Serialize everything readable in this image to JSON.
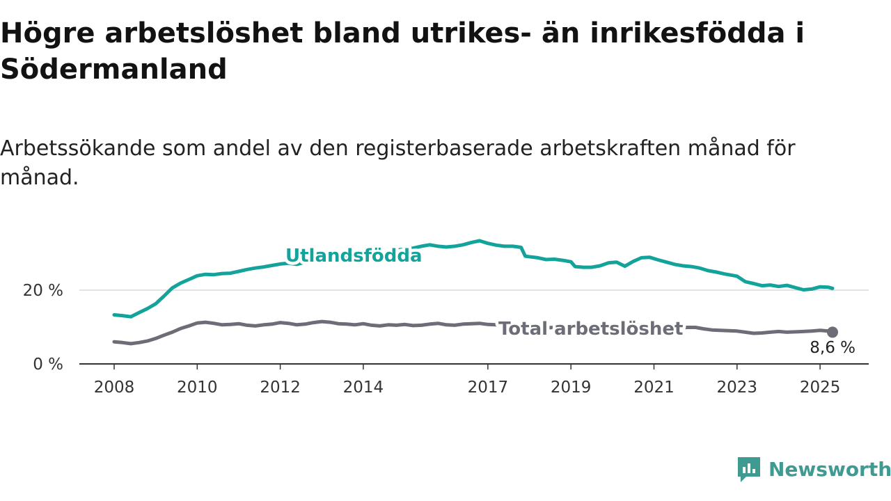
{
  "header": {
    "title": "Högre arbetslöshet bland utrikes- än inrikesfödda i Södermanland",
    "subtitle": "Arbetssökande som andel av den registerbaserade arbetskraften månad för månad."
  },
  "brand": {
    "name": "Newsworthy",
    "icon": "newsworthy-logo-icon",
    "color": "#3f9a91"
  },
  "chart_data": {
    "type": "line",
    "xlim": [
      2008.0,
      2025.5
    ],
    "ylim": [
      0,
      33
    ],
    "grid": true,
    "y_ticks": [
      {
        "value": 0,
        "label": "0 %"
      },
      {
        "value": 20,
        "label": "20 %"
      }
    ],
    "x_ticks": [
      {
        "value": 2008,
        "label": "2008"
      },
      {
        "value": 2010,
        "label": "2010"
      },
      {
        "value": 2012,
        "label": "2012"
      },
      {
        "value": 2014,
        "label": "2014"
      },
      {
        "value": 2017,
        "label": "2017"
      },
      {
        "value": 2019,
        "label": "2019"
      },
      {
        "value": 2021,
        "label": "2021"
      },
      {
        "value": 2023,
        "label": "2023"
      },
      {
        "value": 2025,
        "label": "2025"
      }
    ],
    "series": [
      {
        "name": "Utlandsfödda",
        "color": "#13a39b",
        "points": [
          [
            2008.0,
            13.3
          ],
          [
            2008.2,
            13.1
          ],
          [
            2008.4,
            12.8
          ],
          [
            2008.6,
            13.9
          ],
          [
            2008.8,
            15.0
          ],
          [
            2009.0,
            16.3
          ],
          [
            2009.2,
            18.4
          ],
          [
            2009.4,
            20.6
          ],
          [
            2009.6,
            21.9
          ],
          [
            2009.8,
            22.9
          ],
          [
            2010.0,
            23.9
          ],
          [
            2010.2,
            24.3
          ],
          [
            2010.4,
            24.2
          ],
          [
            2010.6,
            24.5
          ],
          [
            2010.8,
            24.6
          ],
          [
            2011.0,
            25.1
          ],
          [
            2011.2,
            25.6
          ],
          [
            2011.4,
            26.0
          ],
          [
            2011.6,
            26.3
          ],
          [
            2011.8,
            26.7
          ],
          [
            2012.0,
            27.1
          ],
          [
            2012.2,
            27.3
          ],
          [
            2012.4,
            27.0
          ],
          [
            2012.6,
            27.6
          ],
          [
            2012.8,
            28.3
          ],
          [
            2013.0,
            28.6
          ],
          [
            2013.2,
            28.3
          ],
          [
            2013.4,
            28.8
          ],
          [
            2013.6,
            29.3
          ],
          [
            2013.8,
            29.1
          ],
          [
            2014.0,
            29.6
          ],
          [
            2014.2,
            30.2
          ],
          [
            2014.4,
            29.8
          ],
          [
            2014.6,
            30.4
          ],
          [
            2014.8,
            30.9
          ],
          [
            2015.0,
            31.1
          ],
          [
            2015.2,
            31.4
          ],
          [
            2015.4,
            31.9
          ],
          [
            2015.6,
            32.3
          ],
          [
            2015.8,
            31.9
          ],
          [
            2016.0,
            31.7
          ],
          [
            2016.2,
            31.9
          ],
          [
            2016.4,
            32.3
          ],
          [
            2016.6,
            32.9
          ],
          [
            2016.8,
            33.4
          ],
          [
            2017.0,
            32.7
          ],
          [
            2017.2,
            32.2
          ],
          [
            2017.4,
            31.9
          ],
          [
            2017.6,
            31.9
          ],
          [
            2017.8,
            31.6
          ],
          [
            2017.9,
            29.2
          ],
          [
            2018.2,
            28.8
          ],
          [
            2018.4,
            28.3
          ],
          [
            2018.6,
            28.4
          ],
          [
            2018.8,
            28.1
          ],
          [
            2019.0,
            27.7
          ],
          [
            2019.1,
            26.4
          ],
          [
            2019.3,
            26.2
          ],
          [
            2019.5,
            26.2
          ],
          [
            2019.7,
            26.6
          ],
          [
            2019.9,
            27.4
          ],
          [
            2020.1,
            27.6
          ],
          [
            2020.3,
            26.5
          ],
          [
            2020.5,
            27.8
          ],
          [
            2020.7,
            28.8
          ],
          [
            2020.9,
            28.9
          ],
          [
            2021.1,
            28.2
          ],
          [
            2021.3,
            27.6
          ],
          [
            2021.5,
            27.0
          ],
          [
            2021.7,
            26.6
          ],
          [
            2021.9,
            26.4
          ],
          [
            2022.1,
            26.0
          ],
          [
            2022.3,
            25.3
          ],
          [
            2022.5,
            24.9
          ],
          [
            2022.7,
            24.4
          ],
          [
            2022.9,
            24.0
          ],
          [
            2023.0,
            23.8
          ],
          [
            2023.2,
            22.3
          ],
          [
            2023.4,
            21.8
          ],
          [
            2023.6,
            21.2
          ],
          [
            2023.8,
            21.4
          ],
          [
            2024.0,
            21.0
          ],
          [
            2024.2,
            21.3
          ],
          [
            2024.4,
            20.7
          ],
          [
            2024.6,
            20.1
          ],
          [
            2024.8,
            20.3
          ],
          [
            2025.0,
            20.9
          ],
          [
            2025.2,
            20.8
          ],
          [
            2025.3,
            20.5
          ]
        ]
      },
      {
        "name": "Total arbetslöshet",
        "color": "#6d6d78",
        "end_label": "8,6 %",
        "points": [
          [
            2008.0,
            6.0
          ],
          [
            2008.2,
            5.8
          ],
          [
            2008.4,
            5.5
          ],
          [
            2008.6,
            5.8
          ],
          [
            2008.8,
            6.2
          ],
          [
            2009.0,
            6.9
          ],
          [
            2009.2,
            7.8
          ],
          [
            2009.4,
            8.6
          ],
          [
            2009.6,
            9.6
          ],
          [
            2009.8,
            10.3
          ],
          [
            2010.0,
            11.1
          ],
          [
            2010.2,
            11.3
          ],
          [
            2010.4,
            11.0
          ],
          [
            2010.6,
            10.6
          ],
          [
            2010.8,
            10.7
          ],
          [
            2011.0,
            10.9
          ],
          [
            2011.2,
            10.5
          ],
          [
            2011.4,
            10.3
          ],
          [
            2011.6,
            10.6
          ],
          [
            2011.8,
            10.8
          ],
          [
            2012.0,
            11.2
          ],
          [
            2012.2,
            11.0
          ],
          [
            2012.4,
            10.6
          ],
          [
            2012.6,
            10.8
          ],
          [
            2012.8,
            11.2
          ],
          [
            2013.0,
            11.5
          ],
          [
            2013.2,
            11.3
          ],
          [
            2013.4,
            10.9
          ],
          [
            2013.6,
            10.8
          ],
          [
            2013.8,
            10.6
          ],
          [
            2014.0,
            10.9
          ],
          [
            2014.2,
            10.5
          ],
          [
            2014.4,
            10.3
          ],
          [
            2014.6,
            10.6
          ],
          [
            2014.8,
            10.5
          ],
          [
            2015.0,
            10.7
          ],
          [
            2015.2,
            10.4
          ],
          [
            2015.4,
            10.5
          ],
          [
            2015.6,
            10.8
          ],
          [
            2015.8,
            11.0
          ],
          [
            2016.0,
            10.6
          ],
          [
            2016.2,
            10.5
          ],
          [
            2016.4,
            10.8
          ],
          [
            2016.6,
            10.9
          ],
          [
            2016.8,
            11.0
          ],
          [
            2017.0,
            10.7
          ],
          [
            2017.2,
            10.6
          ],
          [
            2017.4,
            10.5
          ],
          [
            2017.6,
            10.4
          ],
          [
            2017.8,
            10.2
          ],
          [
            2018.0,
            10.0
          ],
          [
            2018.2,
            9.9
          ],
          [
            2018.4,
            9.8
          ],
          [
            2018.6,
            9.9
          ],
          [
            2018.8,
            10.0
          ],
          [
            2019.0,
            9.7
          ],
          [
            2019.2,
            9.8
          ],
          [
            2019.4,
            9.9
          ],
          [
            2019.6,
            10.0
          ],
          [
            2019.8,
            10.1
          ],
          [
            2020.0,
            10.5
          ],
          [
            2020.2,
            10.4
          ],
          [
            2020.4,
            10.3
          ],
          [
            2020.6,
            10.6
          ],
          [
            2020.8,
            10.5
          ],
          [
            2021.0,
            10.2
          ],
          [
            2021.2,
            10.0
          ],
          [
            2021.4,
            9.9
          ],
          [
            2021.6,
            9.8
          ],
          [
            2021.8,
            9.9
          ],
          [
            2022.0,
            9.9
          ],
          [
            2022.2,
            9.5
          ],
          [
            2022.4,
            9.2
          ],
          [
            2022.6,
            9.1
          ],
          [
            2022.8,
            9.0
          ],
          [
            2023.0,
            8.9
          ],
          [
            2023.2,
            8.6
          ],
          [
            2023.4,
            8.3
          ],
          [
            2023.6,
            8.4
          ],
          [
            2023.8,
            8.6
          ],
          [
            2024.0,
            8.8
          ],
          [
            2024.2,
            8.6
          ],
          [
            2024.4,
            8.7
          ],
          [
            2024.6,
            8.8
          ],
          [
            2024.8,
            8.9
          ],
          [
            2025.0,
            9.1
          ],
          [
            2025.2,
            8.9
          ],
          [
            2025.3,
            8.6
          ]
        ]
      }
    ]
  }
}
